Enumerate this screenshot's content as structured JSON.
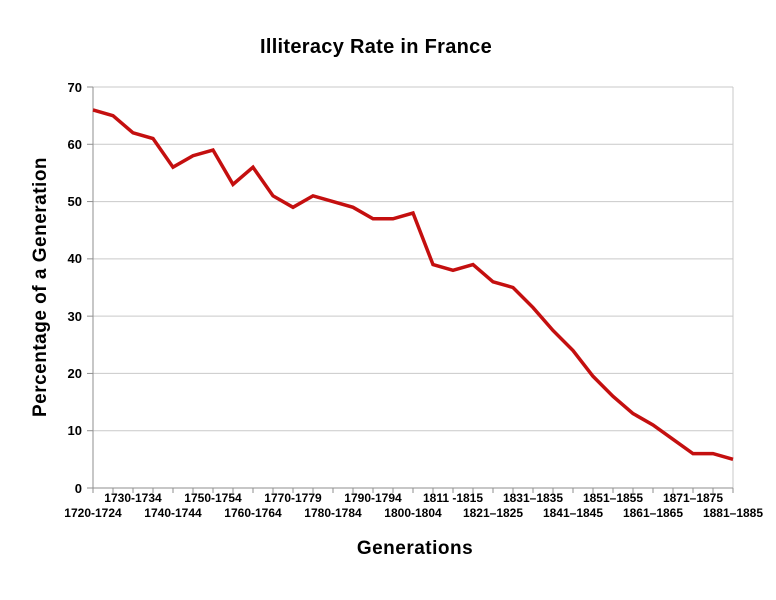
{
  "chart_data": {
    "type": "line",
    "title": "Illiteracy Rate in France",
    "xlabel": "Generations",
    "ylabel": "Percentage of a Generation",
    "ylim": [
      0,
      70
    ],
    "yticks": [
      0,
      10,
      20,
      30,
      40,
      50,
      60,
      70
    ],
    "grid": true,
    "legend": "none",
    "colors": {
      "line": "#c40f0f",
      "grid": "#c9c9c9",
      "axis": "#8f8f8f",
      "text": "#000000",
      "background": "#ffffff"
    },
    "categories": [
      "1720-1724",
      "",
      "1730-1734",
      "",
      "1740-1744",
      "",
      "1750-1754",
      "",
      "1760-1764",
      "",
      "1770-1779",
      "",
      "1780-1784",
      "",
      "1790-1794",
      "",
      "1800-1804",
      "",
      "1811 -1815",
      "",
      "1821–1825",
      "",
      "1831–1835",
      "",
      "1841–1845",
      "",
      "1851–1855",
      "",
      "1861–1865",
      "",
      "1871–1875",
      "",
      "1881–1885"
    ],
    "values": [
      66,
      65,
      62,
      61,
      56,
      58,
      59,
      53,
      56,
      51,
      49,
      51,
      50,
      49,
      47,
      47,
      48,
      39,
      38,
      39,
      36,
      35,
      31.5,
      27.5,
      24,
      19.5,
      16,
      13,
      11,
      8.5,
      6,
      6,
      5
    ],
    "x_labels": [
      {
        "text": "1720-1724",
        "point_index": 0,
        "row": "lower"
      },
      {
        "text": "1730-1734",
        "point_index": 2,
        "row": "upper"
      },
      {
        "text": "1740-1744",
        "point_index": 4,
        "row": "lower"
      },
      {
        "text": "1750-1754",
        "point_index": 6,
        "row": "upper"
      },
      {
        "text": "1760-1764",
        "point_index": 8,
        "row": "lower"
      },
      {
        "text": "1770-1779",
        "point_index": 10,
        "row": "upper"
      },
      {
        "text": "1780-1784",
        "point_index": 12,
        "row": "lower"
      },
      {
        "text": "1790-1794",
        "point_index": 14,
        "row": "upper"
      },
      {
        "text": "1800-1804",
        "point_index": 16,
        "row": "lower"
      },
      {
        "text": "1811 -1815",
        "point_index": 18,
        "row": "upper"
      },
      {
        "text": "1821–1825",
        "point_index": 20,
        "row": "lower"
      },
      {
        "text": "1831–1835",
        "point_index": 22,
        "row": "upper"
      },
      {
        "text": "1841–1845",
        "point_index": 24,
        "row": "lower"
      },
      {
        "text": "1851–1855",
        "point_index": 26,
        "row": "upper"
      },
      {
        "text": "1861–1865",
        "point_index": 28,
        "row": "lower"
      },
      {
        "text": "1871–1875",
        "point_index": 30,
        "row": "upper"
      },
      {
        "text": "1881–1885",
        "point_index": 32,
        "row": "lower"
      }
    ]
  }
}
